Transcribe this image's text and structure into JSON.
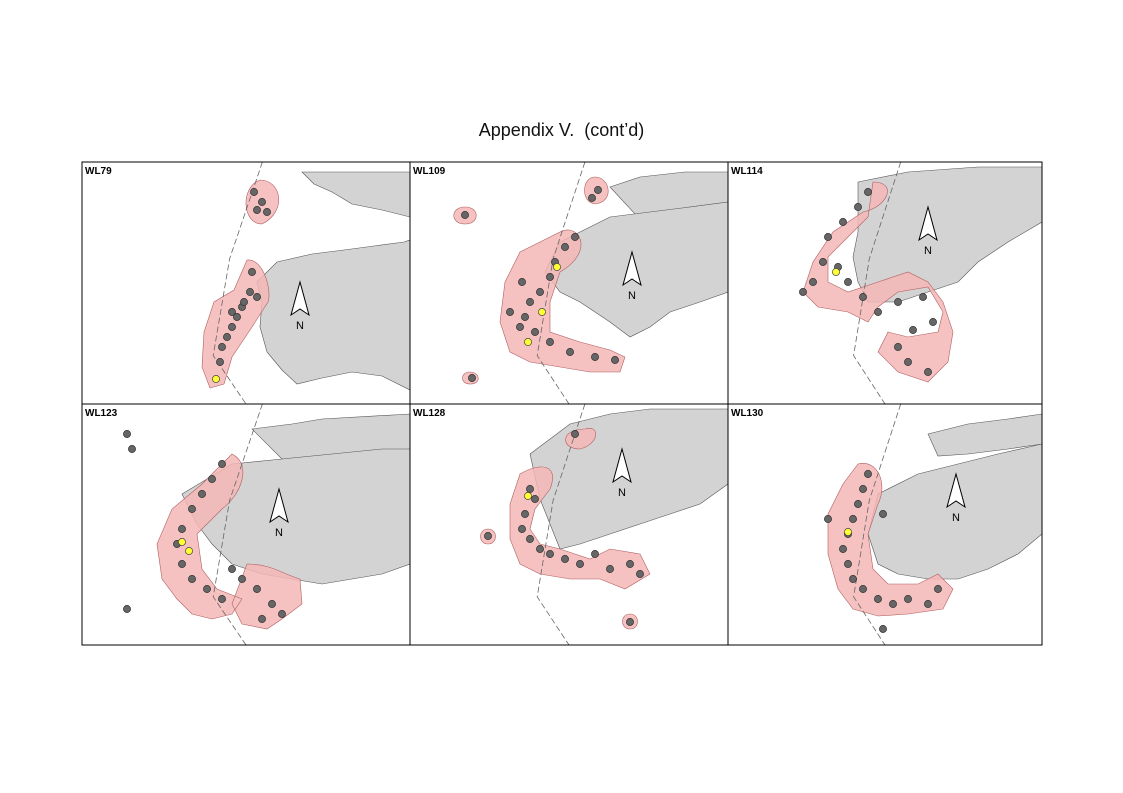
{
  "title": "Appendix V.  (cont’d)",
  "panels": [
    {
      "label": "WL79",
      "north": "N"
    },
    {
      "label": "WL109",
      "north": "N"
    },
    {
      "label": "WL114",
      "north": "N"
    },
    {
      "label": "WL123",
      "north": "N"
    },
    {
      "label": "WL128",
      "north": "N"
    },
    {
      "label": "WL130",
      "north": "N"
    }
  ]
}
